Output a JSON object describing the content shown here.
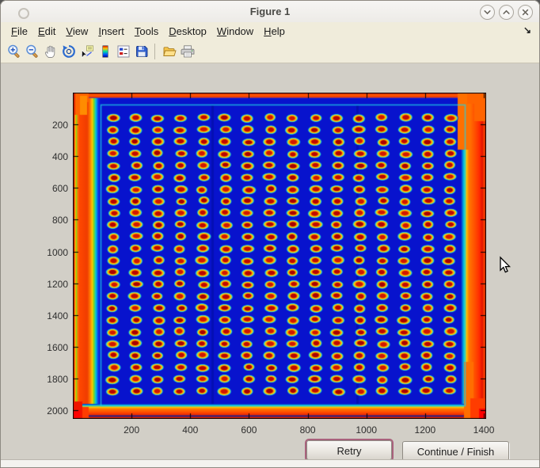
{
  "window": {
    "title": "Figure 1"
  },
  "titlebar": {
    "buttons": [
      {
        "name": "minimize",
        "glyph": "chevron-down"
      },
      {
        "name": "maximize",
        "glyph": "chevron-up"
      },
      {
        "name": "close",
        "glyph": "x"
      }
    ]
  },
  "menubar": {
    "items": [
      {
        "label": "File"
      },
      {
        "label": "Edit"
      },
      {
        "label": "View"
      },
      {
        "label": "Insert"
      },
      {
        "label": "Tools"
      },
      {
        "label": "Desktop"
      },
      {
        "label": "Window"
      },
      {
        "label": "Help"
      }
    ],
    "overflow_arrow": "↘"
  },
  "toolbar": {
    "tools": [
      {
        "name": "zoom-in"
      },
      {
        "name": "zoom-out"
      },
      {
        "name": "pan"
      },
      {
        "name": "rotate-3d"
      },
      {
        "name": "data-cursor"
      },
      {
        "name": "insert-colorbar"
      },
      {
        "name": "insert-legend"
      },
      {
        "name": "save-figure"
      },
      {
        "name": "open-file",
        "group_start": true
      },
      {
        "name": "print-figure"
      }
    ]
  },
  "figure": {
    "axes": {
      "x_ticks": [
        200,
        400,
        600,
        800,
        1000,
        1200,
        1400
      ],
      "x_range": [
        0,
        1408
      ],
      "y_ticks": [
        200,
        400,
        600,
        800,
        1000,
        1200,
        1400,
        1600,
        1800,
        2000
      ],
      "y_range": [
        0,
        2054
      ]
    },
    "image": {
      "type": "heatmap",
      "colormap": "jet",
      "description": "Thermal image of a 384-well microplate: 16 x 24 grid of hot wells (red cores, yellow rings, cyan halos) on a cold deep-blue plate with hot orange/red edges",
      "grid": {
        "cols": 16,
        "rows": 24
      },
      "colors": {
        "field": "#0813cd",
        "well_centers": [
          "#a80000",
          "#c00a00",
          "#d01800",
          "#b80400"
        ],
        "well_ring": "#ff9000",
        "well_outer": "#ffd800",
        "well_halo": "#18d0e4",
        "border_hot": "#ff4800",
        "border_orange": "#ff7800",
        "border_edge": "#b00000",
        "border_yellow": "#ffc800",
        "border_green": "#7cd41e",
        "border_cyan": "#00c8e0",
        "seam": "#000a96",
        "dark_streak": "#0a1e9b"
      }
    }
  },
  "action_buttons": [
    {
      "label": "Retry",
      "focused": true,
      "focus_ring_color": "#a9617c"
    },
    {
      "label": "Continue / Finish",
      "focused": false
    }
  ],
  "pointer": {
    "visible": true
  }
}
